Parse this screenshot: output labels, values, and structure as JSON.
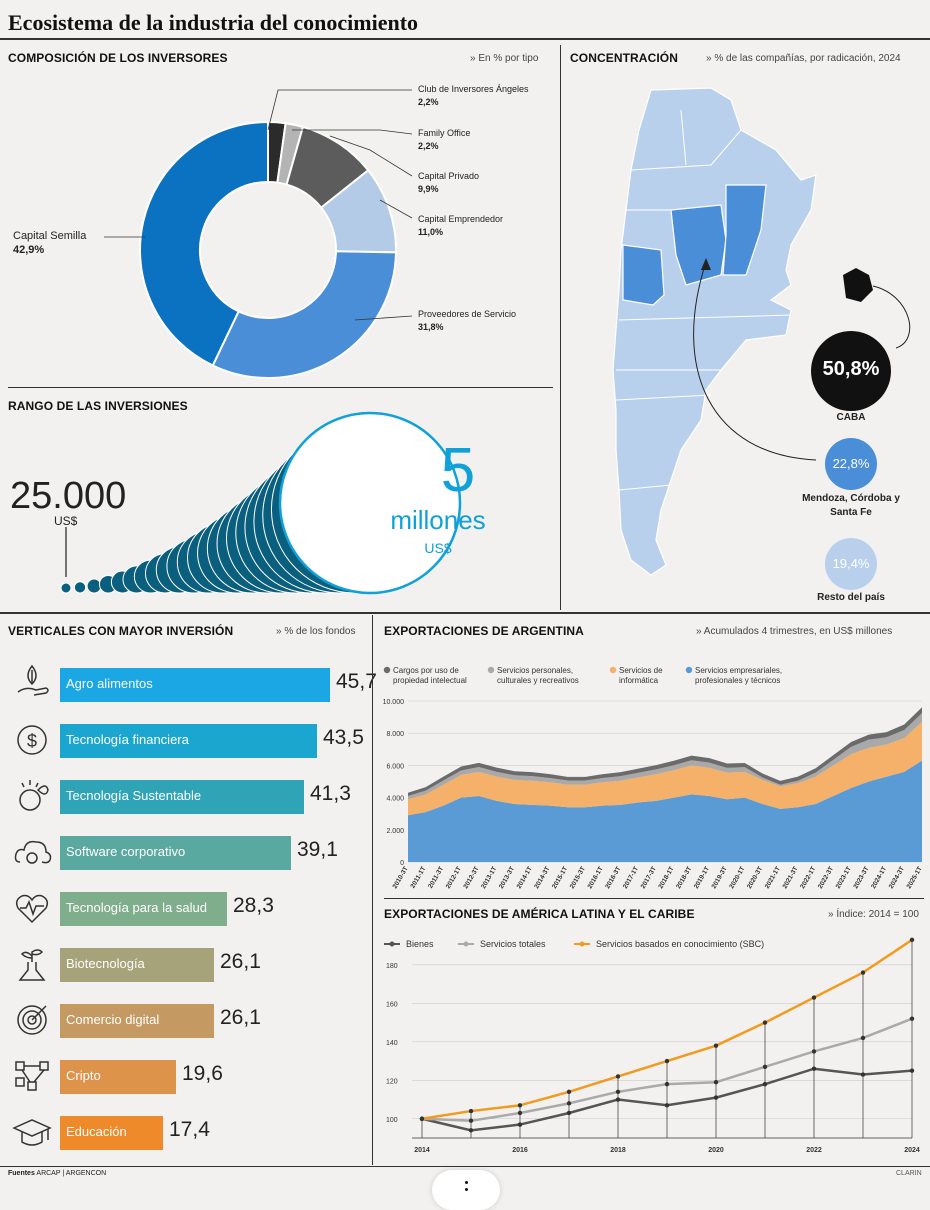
{
  "title": "Ecosistema de la industria del conocimiento",
  "investors": {
    "heading": "COMPOSICIÓN DE LOS INVERSORES",
    "note": "» En % por tipo",
    "items": [
      {
        "label": "Club de Inversores Ángeles",
        "value": "2,2%",
        "pct": 2.2,
        "color": "#2b2b2b"
      },
      {
        "label": "Family Office",
        "value": "2,2%",
        "pct": 2.2,
        "color": "#b4b4b4"
      },
      {
        "label": "Capital Privado",
        "value": "9,9%",
        "pct": 9.9,
        "color": "#5c5c5c"
      },
      {
        "label": "Capital Emprendedor",
        "value": "11,0%",
        "pct": 11.0,
        "color": "#b4cbe8"
      },
      {
        "label": "Proveedores de Servicio",
        "value": "31,8%",
        "pct": 31.8,
        "color": "#4a8ed8"
      },
      {
        "label": "Capital Semilla",
        "value": "42,9%",
        "pct": 42.9,
        "color": "#0a72c0"
      }
    ]
  },
  "range": {
    "heading": "RANGO DE LAS INVERSIONES",
    "min_value": "25.000",
    "min_unit": "US$",
    "max_value": "5",
    "max_word": "millones",
    "max_unit": "US$"
  },
  "concentration": {
    "heading": "CONCENTRACIÓN",
    "note": "» % de las compañías, por radicación, 2024",
    "items": [
      {
        "value": "50,8%",
        "label": "CABA",
        "color": "#111111"
      },
      {
        "value": "22,8%",
        "label": "Mendoza, Córdoba y Santa Fe",
        "color": "#4a8ed8"
      },
      {
        "value": "19,4%",
        "label": "Resto del país",
        "color": "#b4cbe8"
      }
    ]
  },
  "verticals": {
    "heading": "VERTICALES CON MAYOR INVERSIÓN",
    "note": "» % de los fondos",
    "items": [
      {
        "label": "Agro alimentos",
        "value": "45,7",
        "num": 45.7,
        "color": "#1aa7e3",
        "icon": "hand-plant-icon"
      },
      {
        "label": "Tecnología  financiera",
        "value": "43,5",
        "num": 43.5,
        "color": "#1ba6cf",
        "icon": "dollar-icon"
      },
      {
        "label": "Tecnología Sustentable",
        "value": "41,3",
        "num": 41.3,
        "color": "#2fa4b7",
        "icon": "earth-leaf-icon"
      },
      {
        "label": "Software corporativo",
        "value": "39,1",
        "num": 39.1,
        "color": "#5aa9a1",
        "icon": "cloud-gear-icon"
      },
      {
        "label": "Tecnología para la salud",
        "value": "28,3",
        "num": 28.3,
        "color": "#7fae8c",
        "icon": "heart-pulse-icon"
      },
      {
        "label": "Biotecnología",
        "value": "26,1",
        "num": 26.1,
        "color": "#a6a27a",
        "icon": "flask-plant-icon"
      },
      {
        "label": "Comercio digital",
        "value": "26,1",
        "num": 26.1,
        "color": "#c49a62",
        "icon": "target-icon"
      },
      {
        "label": "Cripto",
        "value": "19,6",
        "num": 19.6,
        "color": "#dd944a",
        "icon": "blockchain-icon"
      },
      {
        "label": "Educación",
        "value": "17,4",
        "num": 17.4,
        "color": "#ee8a2a",
        "icon": "graduation-cap-icon"
      }
    ]
  },
  "chart_data": [
    {
      "type": "area",
      "title": "EXPORTACIONES DE ARGENTINA",
      "subtitle": "» Acumulados 4 trimestres, en US$ millones",
      "ylim": [
        0,
        10000
      ],
      "yticks": [
        "0",
        "2.000",
        "4.000",
        "6.000",
        "8.000",
        "10.000"
      ],
      "x": [
        "2010-3T",
        "2011-1T",
        "2011-3T",
        "2012-1T",
        "2012-3T",
        "2013-1T",
        "2013-3T",
        "2014-1T",
        "2014-3T",
        "2015-1T",
        "2015-3T",
        "2016-1T",
        "2016-3T",
        "2017-1T",
        "2017-3T",
        "2018-1T",
        "2018-3T",
        "2019-1T",
        "2019-3T",
        "2020-1T",
        "2020-3T",
        "2021-1T",
        "2021-3T",
        "2022-1T",
        "2022-3T",
        "2023-1T",
        "2023-3T",
        "2024-1T",
        "2024-3T",
        "2025-1T"
      ],
      "series": [
        {
          "name": "Servicios empresariales, profesionales y técnicos",
          "color": "#5b9bd5",
          "values": [
            2900,
            3100,
            3500,
            4000,
            4100,
            3800,
            3600,
            3550,
            3500,
            3400,
            3400,
            3500,
            3550,
            3700,
            3800,
            4000,
            4200,
            4100,
            3900,
            4000,
            3600,
            3300,
            3400,
            3600,
            4100,
            4600,
            5000,
            5300,
            5600,
            6300
          ]
        },
        {
          "name": "Servicios de informática",
          "color": "#f5b06a",
          "values": [
            1000,
            1100,
            1300,
            1400,
            1500,
            1500,
            1500,
            1500,
            1450,
            1400,
            1400,
            1450,
            1500,
            1550,
            1650,
            1700,
            1800,
            1750,
            1650,
            1600,
            1500,
            1400,
            1500,
            1700,
            1900,
            2100,
            2100,
            2000,
            2100,
            2400
          ]
        },
        {
          "name": "Servicios personales, culturales y recreativos",
          "color": "#a9a9a9",
          "values": [
            200,
            230,
            260,
            280,
            300,
            300,
            290,
            280,
            270,
            260,
            260,
            270,
            280,
            290,
            300,
            310,
            320,
            320,
            300,
            290,
            150,
            100,
            150,
            250,
            350,
            450,
            500,
            450,
            500,
            550
          ]
        },
        {
          "name": "Cargos por uso de propiedad intelectual",
          "color": "#6b6b6b",
          "values": [
            200,
            220,
            240,
            250,
            260,
            260,
            250,
            250,
            240,
            230,
            230,
            240,
            250,
            260,
            270,
            280,
            290,
            280,
            270,
            260,
            250,
            240,
            250,
            270,
            290,
            300,
            310,
            320,
            340,
            360
          ]
        }
      ]
    },
    {
      "type": "line",
      "title": "EXPORTACIONES DE AMÉRICA LATINA Y EL CARIBE",
      "subtitle": "» Índice: 2014 = 100",
      "ylim": [
        90,
        195
      ],
      "yticks": [
        "100",
        "120",
        "140",
        "160",
        "180"
      ],
      "x": [
        "2014",
        "2015",
        "2016",
        "2017",
        "2018",
        "2019",
        "2020",
        "2021",
        "2022",
        "2023",
        "2024"
      ],
      "xticks": [
        "2014",
        "2016",
        "2018",
        "2020",
        "2022",
        "2024"
      ],
      "series": [
        {
          "name": "Bienes",
          "color": "#555555",
          "values": [
            100,
            94,
            97,
            103,
            110,
            107,
            111,
            118,
            126,
            123,
            125
          ]
        },
        {
          "name": "Servicios totales",
          "color": "#aaaaaa",
          "values": [
            100,
            99,
            103,
            108,
            114,
            118,
            119,
            127,
            135,
            142,
            152
          ]
        },
        {
          "name": "Servicios basados en conocimiento (SBC)",
          "color": "#f39a1e",
          "values": [
            100,
            104,
            107,
            114,
            122,
            130,
            138,
            150,
            163,
            176,
            193
          ]
        }
      ]
    }
  ],
  "footer": {
    "source_label": "Fuentes",
    "source_text": "ARCAP | ARGENCON",
    "credit": "CLARIN"
  }
}
